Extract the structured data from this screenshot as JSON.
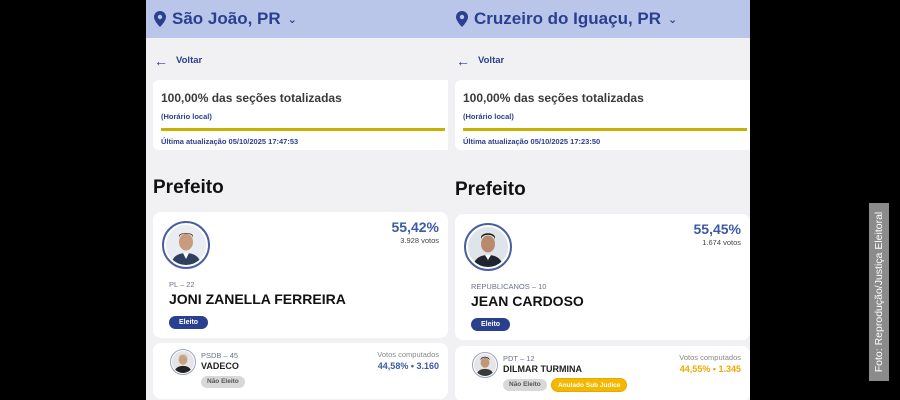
{
  "colors": {
    "topbar": "#b9c6ea",
    "brand_blue": "#2b3f8f",
    "progress": "#c8b000",
    "annul": "#f5b800"
  },
  "panels": [
    {
      "city": "São João, PR",
      "back_label": "Voltar",
      "status_title": "100,00% das seções totalizadas",
      "status_sub": "(Horário local)",
      "progress": 1.0,
      "updated": "Última atualização 05/10/2025 17:47:53",
      "office": "Prefeito",
      "winner": {
        "pct": "55,42%",
        "votes": "3.928 votos",
        "party": "PL – 22",
        "name": "JONI ZANELLA FERREIRA",
        "badge": "Eleito"
      },
      "loser": {
        "party": "PSDB – 45",
        "name": "VADECO",
        "badge": "Não Eleito",
        "vc_label": "Votos computados",
        "vc_value": "44,58%  •  3.160"
      }
    },
    {
      "city": "Cruzeiro do Iguaçu, PR",
      "back_label": "Voltar",
      "status_title": "100,00% das seções totalizadas",
      "status_sub": "(Horário local)",
      "progress": 1.0,
      "updated": "Última atualização 05/10/2025 17:23:50",
      "office": "Prefeito",
      "winner": {
        "pct": "55,45%",
        "votes": "1.674 votos",
        "party": "REPUBLICANOS – 10",
        "name": "JEAN CARDOSO",
        "badge": "Eleito"
      },
      "loser": {
        "party": "PDT – 12",
        "name": "DILMAR TURMINA",
        "badge": "Não Eleito",
        "badge2": "Anulado Sub Judice",
        "vc_label": "Votos computados",
        "vc_value": "44,55%  •  1.345"
      }
    }
  ],
  "credit": "Foto: Reprodução/Justiça Eleitoral"
}
